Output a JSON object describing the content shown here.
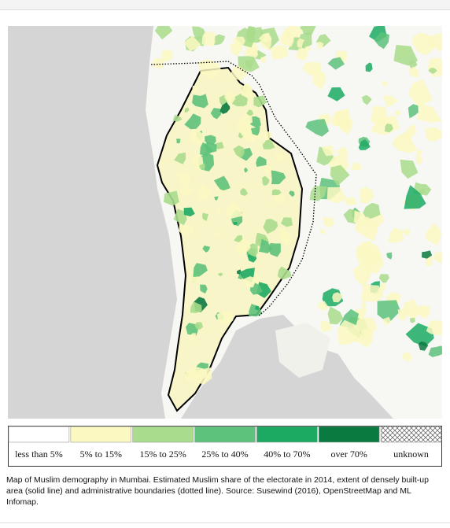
{
  "legend": {
    "items": [
      {
        "label": "less than 5%",
        "color": "#ffffff"
      },
      {
        "label": "5% to 15%",
        "color": "#fbf8c2"
      },
      {
        "label": "15% to 25%",
        "color": "#a9dc8c"
      },
      {
        "label": "25% to 40%",
        "color": "#5dc27b"
      },
      {
        "label": "40% to 70%",
        "color": "#1caa63"
      },
      {
        "label": "over 70%",
        "color": "#0b7a40"
      },
      {
        "label": "unknown"
      }
    ]
  },
  "caption": "Map of Muslim demography in Mumbai. Estimated Muslim share of the electorate in 2014, extent of densely built-up area (solid line) and administrative boundaries (dotted line). Source: Susewind (2016), OpenStreetMap and ML Infomap."
}
